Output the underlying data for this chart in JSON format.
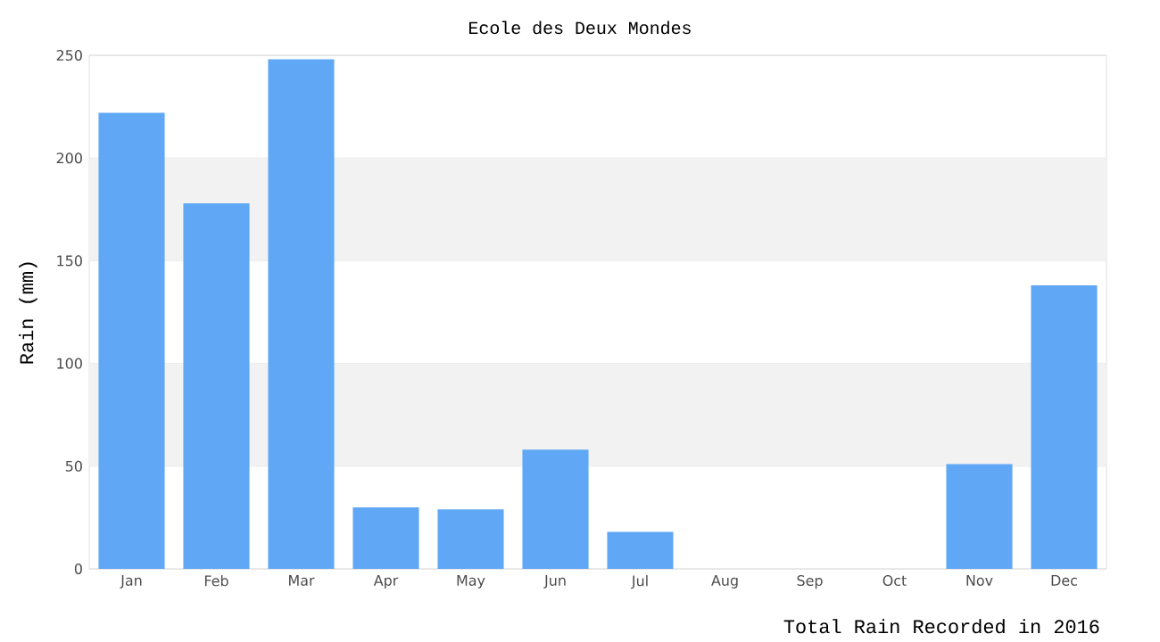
{
  "chart_data": {
    "type": "bar",
    "title": "Ecole des Deux Mondes",
    "ylabel": "Rain (mm)",
    "xlabel": "Total Rain Recorded in 2016",
    "categories": [
      "Jan",
      "Feb",
      "Mar",
      "Apr",
      "May",
      "Jun",
      "Jul",
      "Aug",
      "Sep",
      "Oct",
      "Nov",
      "Dec"
    ],
    "values": [
      222,
      178,
      248,
      30,
      29,
      58,
      18,
      0,
      0,
      0,
      51,
      138
    ],
    "color": "#60a8f5",
    "ylim": [
      0,
      250
    ],
    "yticks": [
      0,
      50,
      100,
      150,
      200,
      250
    ],
    "grid": "y"
  }
}
